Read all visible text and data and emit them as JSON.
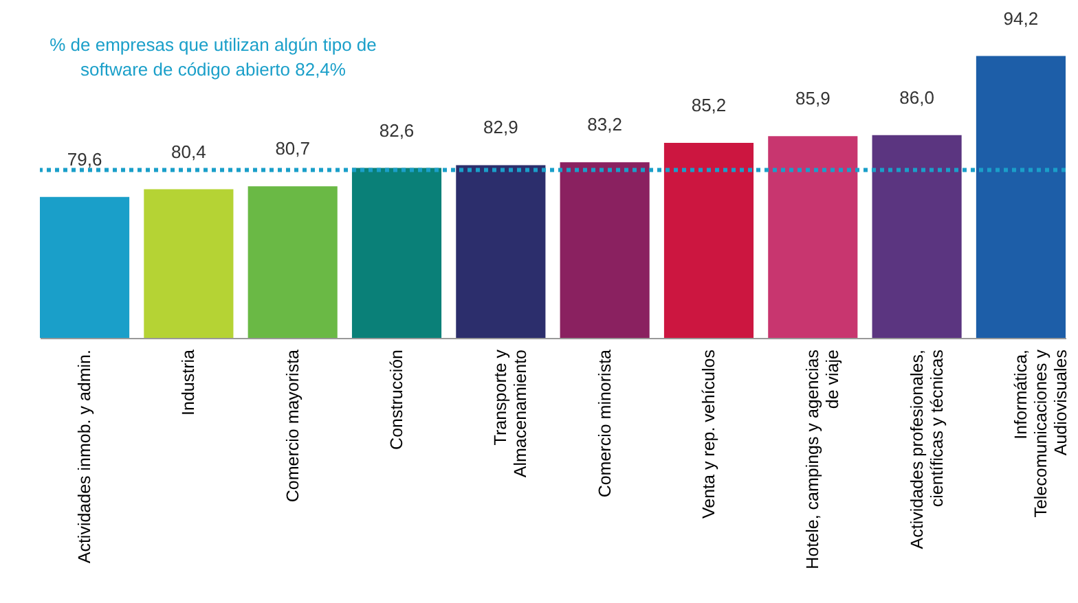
{
  "chart_data": {
    "type": "bar",
    "categories": [
      "Actividades inmob. y admin.",
      "Industria",
      "Comercio mayorista",
      "Construcción",
      "Transporte y\nAlmacenamiento",
      "Comercio minorista",
      "Venta y rep. vehículos",
      "Hotele, campings y agencias\nde viaje",
      "Actividades profesionales,\ncientíficas y técnicas",
      "Informática,\nTelecomunicaciones y\nAudiovisuales"
    ],
    "values": [
      79.6,
      80.4,
      80.7,
      82.6,
      82.9,
      83.2,
      85.2,
      85.9,
      86.0,
      94.2
    ],
    "value_labels": [
      "79,6",
      "80,4",
      "80,7",
      "82,6",
      "82,9",
      "83,2",
      "85,2",
      "85,9",
      "86,0",
      "94,2"
    ],
    "colors": [
      "#1a9fc9",
      "#b5d334",
      "#6ab945",
      "#0a8078",
      "#2c2e6c",
      "#8a2160",
      "#cc1640",
      "#c8366f",
      "#5b3580",
      "#1d5ea8"
    ],
    "ylim": [
      65,
      100
    ],
    "ref_lines": [
      {
        "axis": "y",
        "value": 82.4,
        "label": "% de empresas que utilizan algún tipo de\nsoftware de  código abierto 82,4%",
        "color": "#1a9fc9",
        "line_style": "dotted"
      }
    ],
    "grid": false
  }
}
